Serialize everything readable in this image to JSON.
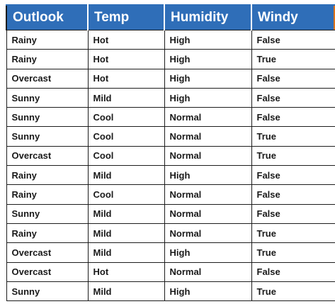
{
  "table": {
    "headers": [
      "Outlook",
      "Temp",
      "Humidity",
      "Windy"
    ],
    "rows": [
      [
        "Rainy",
        "Hot",
        "High",
        "False"
      ],
      [
        "Rainy",
        "Hot",
        "High",
        "True"
      ],
      [
        "Overcast",
        "Hot",
        "High",
        "False"
      ],
      [
        "Sunny",
        "Mild",
        "High",
        "False"
      ],
      [
        "Sunny",
        "Cool",
        "Normal",
        "False"
      ],
      [
        "Sunny",
        "Cool",
        "Normal",
        "True"
      ],
      [
        "Overcast",
        "Cool",
        "Normal",
        "True"
      ],
      [
        "Rainy",
        "Mild",
        "High",
        "False"
      ],
      [
        "Rainy",
        "Cool",
        "Normal",
        "False"
      ],
      [
        "Sunny",
        "Mild",
        "Normal",
        "False"
      ],
      [
        "Rainy",
        "Mild",
        "Normal",
        "True"
      ],
      [
        "Overcast",
        "Mild",
        "High",
        "True"
      ],
      [
        "Overcast",
        "Hot",
        "Normal",
        "False"
      ],
      [
        "Sunny",
        "Mild",
        "High",
        "True"
      ]
    ]
  },
  "colors": {
    "header_bg": "#2f6eb8",
    "header_text": "#ffffff",
    "accent_edge": "#d9731d",
    "grid": "#1d1d1d"
  }
}
